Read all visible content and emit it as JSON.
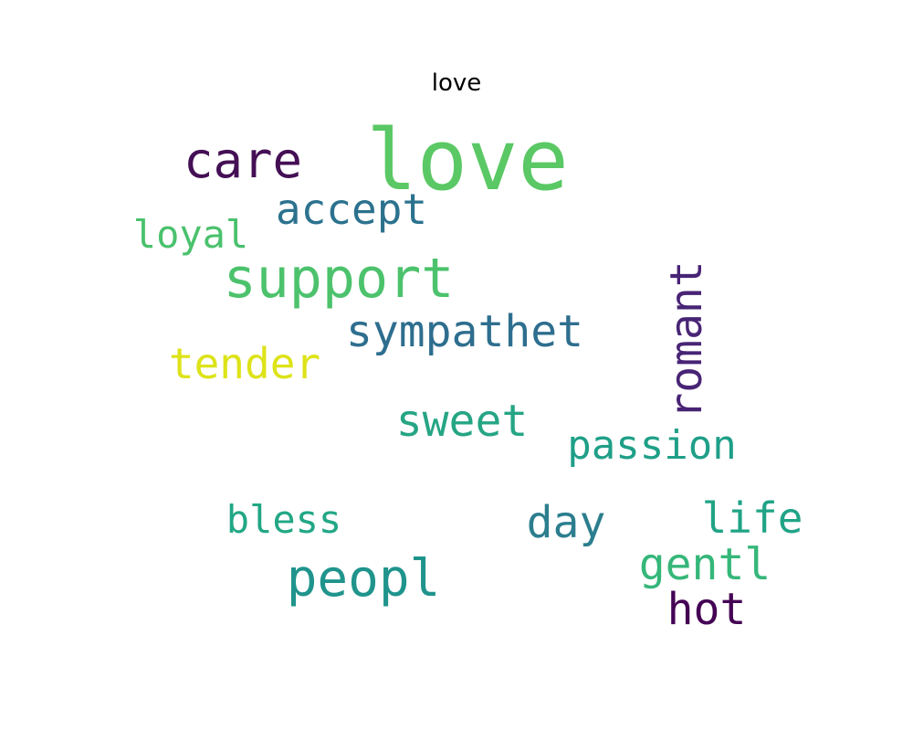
{
  "title": "love",
  "words": [
    {
      "text": "love",
      "color": "#5ac864"
    },
    {
      "text": "care",
      "color": "#440f54"
    },
    {
      "text": "accept",
      "color": "#2c728e"
    },
    {
      "text": "loyal",
      "color": "#4ac16d"
    },
    {
      "text": "support",
      "color": "#4cc26c"
    },
    {
      "text": "sympathet",
      "color": "#2e6e8e"
    },
    {
      "text": "romant",
      "color": "#482475"
    },
    {
      "text": "tender",
      "color": "#dde318"
    },
    {
      "text": "sweet",
      "color": "#25a584"
    },
    {
      "text": "passion",
      "color": "#1f9f88"
    },
    {
      "text": "bless",
      "color": "#22a785"
    },
    {
      "text": "day",
      "color": "#2c7e8e"
    },
    {
      "text": "life",
      "color": "#20a386"
    },
    {
      "text": "peopl",
      "color": "#1f948c"
    },
    {
      "text": "gentl",
      "color": "#35b779"
    },
    {
      "text": "hot",
      "color": "#440154"
    }
  ]
}
